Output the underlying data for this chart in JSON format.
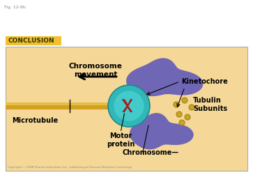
{
  "fig_label": "Fig. 12-8b",
  "title": "CONCLUSION",
  "title_bg": "#F0C030",
  "bg_color": "#FFFFFF",
  "diagram_bg": "#F5D898",
  "labels": {
    "chromosome_movement": "Chromosome\nmovement",
    "microtubule": "Microtubule",
    "motor_protein": "Motor\nprotein",
    "chromosome": "Chromosome",
    "kinetochore": "Kinetochore",
    "tubulin_subunits": "Tubulin\nSubunits"
  },
  "copyright": "Copyright © 2008 Pearson Education, Inc., publishing as Pearson Benjamin Cummings",
  "microtubule_color": "#D4A020",
  "microtubule_highlight": "#E8C850",
  "kinetochore_outer_color": "#30B8B8",
  "kinetochore_inner_color": "#50D8D8",
  "chromosome_color": "#6860B8",
  "chromosome_color2": "#8878CC",
  "motor_protein_color": "#CC1818",
  "tubulin_dot_color": "#C8A428",
  "tubulin_dot_edge": "#A88010"
}
